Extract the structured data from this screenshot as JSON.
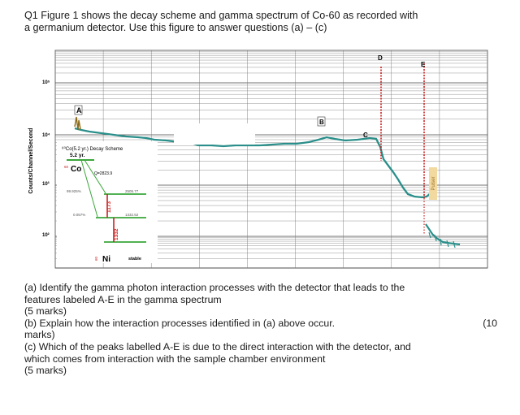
{
  "question_header": {
    "line1": "Q1  Figure 1 shows the decay scheme and gamma spectrum of Co-60 as recorded with",
    "line2": "a germanium detector. Use this figure to answer questions (a) – (c)"
  },
  "figure": {
    "y_axis_label": "Counts/Channel/Second",
    "y_tick_labels": [
      "10⁵",
      "10⁴",
      "10³",
      "10²"
    ],
    "feature_labels": [
      "A",
      "B",
      "C",
      "D",
      "E"
    ],
    "decay_scheme": {
      "title": "⁶⁰Co(5.2 yr.) Decay Scheme",
      "halflife": "5.2 yr.",
      "parent": "Co",
      "parent_mass": "60",
      "q_value": "Q=2823.9",
      "beta1": "99.925%",
      "level1": "2505.77",
      "beta2": "0.057%",
      "level2": "1332.52",
      "gamma1": "1173",
      "gamma2": "1332",
      "daughter": "Ni",
      "daughter_mass": "60",
      "stable": "stable",
      "pulser_label": "Pulser"
    }
  },
  "questions": {
    "a1": "(a) Identify the gamma photon interaction processes with the detector that leads to the",
    "a2": "features labeled A-E in the gamma spectrum",
    "a_marks": "(5 marks)",
    "b1": "(b) Explain how the interaction processes identified in (a) above occur.",
    "b_marks_num": "(10",
    "b2": "marks)",
    "c1": "(c) Which of the peaks labelled A-E is due to the direct interaction with the detector, and",
    "c2": "which comes from interaction with the sample chamber environment",
    "c_marks": "(5 marks)"
  },
  "colors": {
    "spectrum": "#2a8f8a",
    "peak_line": "#cc2222",
    "level_line": "#3aa63a",
    "grid": "#555555"
  }
}
